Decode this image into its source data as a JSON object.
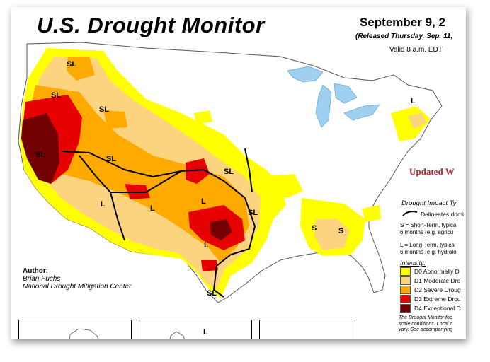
{
  "title": "U.S. Drought Monitor",
  "date": "September 9, 2",
  "released": "(Released Thursday, Sep. 11,",
  "valid": "Valid 8 a.m. EDT",
  "updated": "Updated W",
  "impact": {
    "title": "Drought Impact Ty",
    "delineates": "Delineates domi",
    "s_line1": "S = Short-Term, typica",
    "s_line2": "6 months (e.g. agricu",
    "l_line1": "L = Long-Term, typica",
    "l_line2": "6 months (e.g. hydrolo"
  },
  "intensity": {
    "title": "Intensity:",
    "levels": [
      {
        "label": "D0 Abnormally D",
        "color": "#ffff00"
      },
      {
        "label": "D1 Moderate Dro",
        "color": "#fcd37f"
      },
      {
        "label": "D2 Severe Droug",
        "color": "#ffaa00"
      },
      {
        "label": "D3 Extreme Drou",
        "color": "#e60000"
      },
      {
        "label": "D4 Exceptional D",
        "color": "#730000"
      }
    ]
  },
  "footnote": {
    "line1": "The Drought Monitor foc",
    "line2": "scale conditions. Local c",
    "line3": "vary. See accompanying"
  },
  "author": {
    "label": "Author:",
    "name": "Brian Fuchs",
    "org": "National Drought Mitigation Center"
  },
  "region_labels": {
    "sl1": "SL",
    "sl2": "SL",
    "sl3": "SL",
    "sl4": "SL",
    "sl5": "SL",
    "sl6": "SL",
    "sl7": "SL",
    "sl8": "SL",
    "l1": "L",
    "l2": "L",
    "l3": "L",
    "l4": "L",
    "l5": "L",
    "s1": "S",
    "s2": "S"
  },
  "inset_label": "L"
}
